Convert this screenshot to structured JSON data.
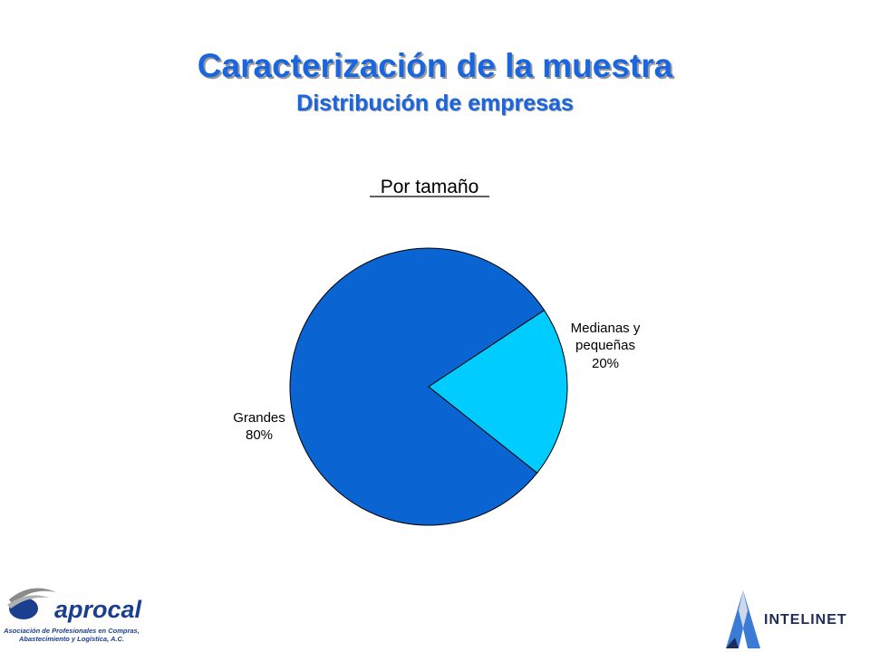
{
  "slide": {
    "title": "Caracterización de la muestra",
    "subtitle": "Distribución de empresas"
  },
  "chart_data": {
    "type": "pie",
    "title": "Por tamaño",
    "slices": [
      {
        "label_line1": "Grandes",
        "label_line2": "",
        "value_label": "80%",
        "value": 80,
        "color": "#0a64d2"
      },
      {
        "label_line1": "Medianas y",
        "label_line2": "pequeñas",
        "value_label": "20%",
        "value": 20,
        "color": "#00ccff"
      }
    ]
  },
  "logos": {
    "left_brand": "aprocal",
    "left_caption_line1": "Asociación de Profesionales en Compras,",
    "left_caption_line2": "Abastecimiento y Logística, A.C.",
    "right_brand": "INTELINET"
  }
}
